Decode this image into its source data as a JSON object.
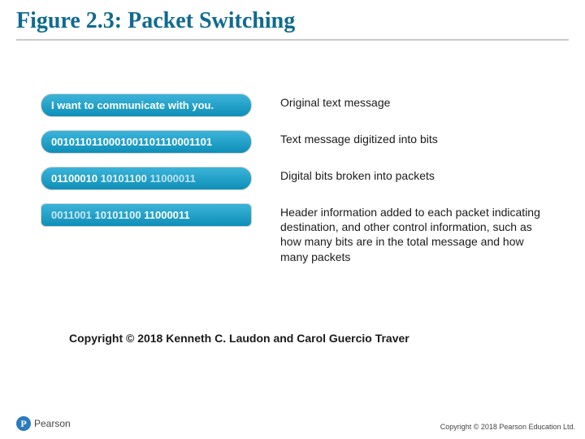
{
  "title": {
    "text": "Figure 2.3: Packet Switching",
    "color": "#0f6b8f",
    "fontsize_pt": 28
  },
  "underline_color": "#c9c9c9",
  "pill_style": {
    "gradient_top": "#3cb4d9",
    "gradient_bottom": "#0e8fb8",
    "text_color": "#ffffff",
    "border_color": "#d0d0d0",
    "fontsize_pt": 13
  },
  "desc_color": "#1a1a1a",
  "rows": [
    {
      "shape": "rounded",
      "segments": [
        {
          "text": "I want to communicate with you.",
          "opacity": 1.0
        }
      ],
      "desc": "Original text message"
    },
    {
      "shape": "rounded",
      "segments": [
        {
          "text": "0010110110001001101110001101",
          "opacity": 1.0
        }
      ],
      "desc": "Text message digitized into bits"
    },
    {
      "shape": "rounded",
      "segments": [
        {
          "text": "01100010 ",
          "opacity": 1.0
        },
        {
          "text": "10101100 ",
          "opacity": 0.85
        },
        {
          "text": "11000011",
          "opacity": 0.7
        }
      ],
      "desc": "Digital bits broken into packets"
    },
    {
      "shape": "sq",
      "segments": [
        {
          "text": "0011001 ",
          "opacity": 0.75
        },
        {
          "text": "10101100 ",
          "opacity": 0.88
        },
        {
          "text": "11000011",
          "opacity": 1.0
        }
      ],
      "desc": "Header information added to each packet indicating destination, and other control information, such as how many bits are in the total message and how many packets"
    }
  ],
  "inner_copyright": "Copyright © 2018 Kenneth C. Laudon and Carol Guercio Traver",
  "footer_text": "Copyright © 2018 Pearson Education Ltd.",
  "pearson": {
    "mark_bg": "#2a7bbf",
    "label": "Pearson"
  }
}
